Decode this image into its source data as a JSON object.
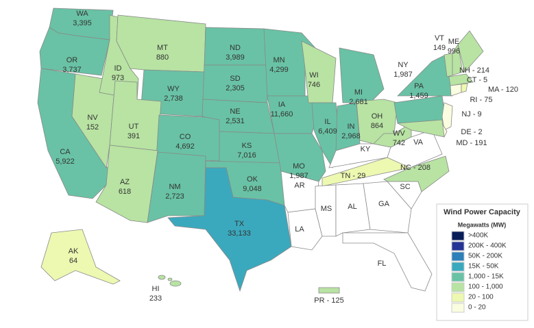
{
  "map": {
    "states": [
      {
        "label": "WA",
        "value": "3,395",
        "color": "#69c2a5"
      },
      {
        "label": "OR",
        "value": "3,737",
        "color": "#69c2a5"
      },
      {
        "label": "CA",
        "value": "5,922",
        "color": "#69c2a5"
      },
      {
        "label": "NV",
        "value": "152",
        "color": "#b8e3a3"
      },
      {
        "label": "ID",
        "value": "973",
        "color": "#b8e3a3"
      },
      {
        "label": "MT",
        "value": "880",
        "color": "#b8e3a3"
      },
      {
        "label": "WY",
        "value": "2,738",
        "color": "#69c2a5"
      },
      {
        "label": "UT",
        "value": "391",
        "color": "#b8e3a3"
      },
      {
        "label": "CO",
        "value": "4,692",
        "color": "#69c2a5"
      },
      {
        "label": "AZ",
        "value": "618",
        "color": "#b8e3a3"
      },
      {
        "label": "NM",
        "value": "2,723",
        "color": "#69c2a5"
      },
      {
        "label": "ND",
        "value": "3,989",
        "color": "#69c2a5"
      },
      {
        "label": "SD",
        "value": "2,305",
        "color": "#69c2a5"
      },
      {
        "label": "NE",
        "value": "2,531",
        "color": "#69c2a5"
      },
      {
        "label": "KS",
        "value": "7,016",
        "color": "#69c2a5"
      },
      {
        "label": "OK",
        "value": "9,048",
        "color": "#69c2a5"
      },
      {
        "label": "TX",
        "value": "33,133",
        "color": "#3ba9bd"
      },
      {
        "label": "MN",
        "value": "4,299",
        "color": "#69c2a5"
      },
      {
        "label": "IA",
        "value": "11,660",
        "color": "#69c2a5"
      },
      {
        "label": "MO",
        "value": "1,987",
        "color": "#69c2a5"
      },
      {
        "label": "WI",
        "value": "746",
        "color": "#b8e3a3"
      },
      {
        "label": "IL",
        "value": "6,409",
        "color": "#69c2a5"
      },
      {
        "label": "MI",
        "value": "2,681",
        "color": "#69c2a5"
      },
      {
        "label": "IN",
        "value": "2,968",
        "color": "#69c2a5"
      },
      {
        "label": "OH",
        "value": "864",
        "color": "#b8e3a3"
      },
      {
        "label": "KY",
        "color": "#ffffff"
      },
      {
        "label": "TN - 29",
        "color": "#edf8b1"
      },
      {
        "label": "AR",
        "color": "#ffffff"
      },
      {
        "label": "LA",
        "color": "#ffffff"
      },
      {
        "label": "MS",
        "color": "#ffffff"
      },
      {
        "label": "AL",
        "color": "#ffffff"
      },
      {
        "label": "GA",
        "color": "#ffffff"
      },
      {
        "label": "FL",
        "color": "#ffffff"
      },
      {
        "label": "SC",
        "color": "#ffffff"
      },
      {
        "label": "NC - 208",
        "color": "#b8e3a3"
      },
      {
        "label": "VA",
        "color": "#ffffff"
      },
      {
        "label": "WV",
        "value": "742",
        "color": "#b8e3a3"
      },
      {
        "label": "PA",
        "value": "1,459",
        "color": "#69c2a5"
      },
      {
        "label": "NY",
        "value": "1,987",
        "color": "#69c2a5"
      },
      {
        "label": "NJ - 9",
        "color": "#fbfde0"
      },
      {
        "label": "DE - 2",
        "color": "#fbfde0"
      },
      {
        "label": "MD - 191",
        "color": "#b8e3a3"
      },
      {
        "label": "VT",
        "value": "149",
        "color": "#b8e3a3"
      },
      {
        "label": "NH - 214",
        "color": "#b8e3a3"
      },
      {
        "label": "ME",
        "value": "996",
        "color": "#b8e3a3"
      },
      {
        "label": "MA - 120",
        "color": "#b8e3a3"
      },
      {
        "label": "CT - 5",
        "color": "#fbfde0"
      },
      {
        "label": "RI - 75",
        "color": "#edf8b1"
      },
      {
        "label": "AK",
        "value": "64",
        "color": "#edf8b1"
      },
      {
        "label": "HI",
        "value": "233",
        "color": "#b8e3a3"
      },
      {
        "label": "PR - 125",
        "color": "#b8e3a3"
      }
    ],
    "legend": {
      "title": "Wind Power Capacity",
      "subtitle": "Megawatts (MW)",
      "items": [
        {
          "label": ">400K",
          "color": "#081d58"
        },
        {
          "label": "200K - 400K",
          "color": "#253494"
        },
        {
          "label": "50K - 200K",
          "color": "#2c7fb8"
        },
        {
          "label": "15K - 50K",
          "color": "#3ba9bd"
        },
        {
          "label": "1,000 - 15K",
          "color": "#69c2a5"
        },
        {
          "label": "100 - 1,000",
          "color": "#b8e3a3"
        },
        {
          "label": "20 - 100",
          "color": "#edf8b1"
        },
        {
          "label": "0 - 20",
          "color": "#fbfde0"
        }
      ]
    }
  }
}
